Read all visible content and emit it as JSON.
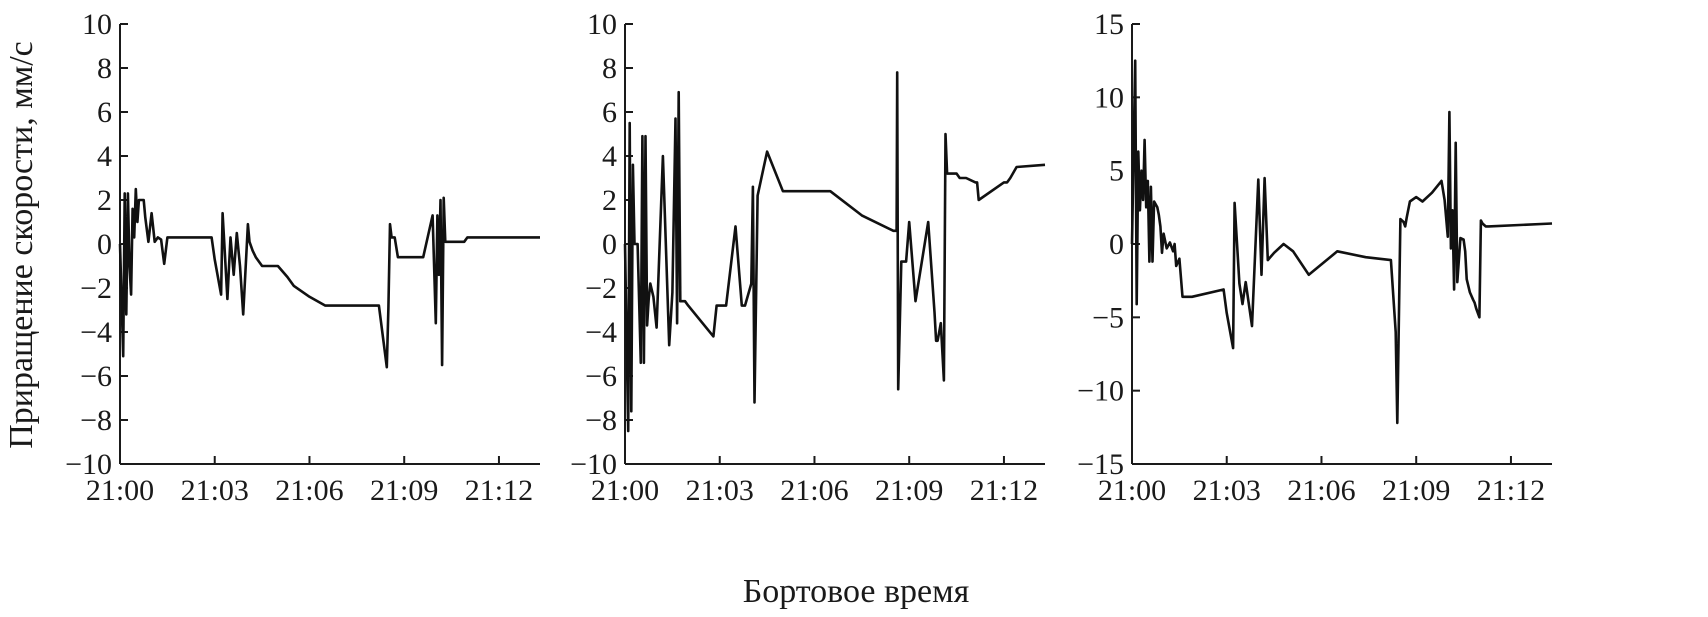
{
  "ylabel": "Приращение скорости, мм/с",
  "xlabel": "Бортовое время",
  "chart_data": [
    {
      "type": "line",
      "ylim": [
        -10,
        10
      ],
      "yticks": [
        -10,
        -8,
        -6,
        -4,
        -2,
        0,
        2,
        4,
        6,
        8,
        10
      ],
      "xlim": [
        0,
        13.3
      ],
      "xticks": [
        0,
        3,
        6,
        9,
        12
      ],
      "xtick_labels": [
        "21:00",
        "21:03",
        "21:06",
        "21:09",
        "21:12"
      ],
      "x": [
        0,
        0.1,
        0.15,
        0.2,
        0.25,
        0.3,
        0.35,
        0.4,
        0.45,
        0.5,
        0.55,
        0.6,
        0.65,
        0.7,
        0.75,
        0.8,
        0.9,
        1.0,
        1.1,
        1.2,
        1.3,
        1.4,
        1.5,
        1.55,
        1.6,
        1.65,
        1.7,
        1.75,
        1.8,
        1.9,
        2.0,
        2.9,
        3.0,
        3.2,
        3.25,
        3.4,
        3.5,
        3.6,
        3.7,
        3.8,
        3.9,
        4.05,
        4.1,
        4.2,
        4.3,
        4.5,
        4.8,
        5.0,
        5.3,
        5.5,
        6.0,
        6.5,
        7.0,
        7.5,
        8.2,
        8.45,
        8.5,
        8.55,
        8.6,
        8.7,
        8.8,
        8.9,
        9.2,
        9.6,
        9.9,
        10.0,
        10.05,
        10.1,
        10.15,
        10.2,
        10.25,
        10.3,
        10.4,
        10.5,
        10.9,
        11.0,
        11.1,
        12.0,
        13.3
      ],
      "y": [
        0,
        -5.1,
        2.3,
        -3.2,
        2.3,
        -1.0,
        -2.3,
        1.6,
        0.3,
        2.5,
        1.0,
        2.0,
        2.0,
        2.0,
        2.0,
        1.2,
        0.1,
        1.4,
        0.1,
        0.3,
        0.2,
        -0.9,
        0.3,
        0.3,
        0.3,
        0.3,
        0.3,
        0.3,
        0.3,
        0.3,
        0.3,
        0.3,
        -0.7,
        -2.3,
        1.4,
        -2.5,
        0.3,
        -1.4,
        0.5,
        -1.0,
        -3.2,
        0.9,
        0.1,
        -0.3,
        -0.6,
        -1.0,
        -1.0,
        -1.0,
        -1.5,
        -1.9,
        -2.4,
        -2.8,
        -2.8,
        -2.8,
        -2.8,
        -5.6,
        -2.9,
        0.9,
        0.3,
        0.3,
        -0.6,
        -0.6,
        -0.6,
        -0.6,
        1.3,
        -3.6,
        1.3,
        -1.4,
        2.0,
        -5.5,
        2.1,
        0.1,
        0.1,
        0.1,
        0.1,
        0.3,
        0.3,
        0.3,
        0.3
      ]
    },
    {
      "type": "line",
      "ylim": [
        -10,
        10
      ],
      "yticks": [
        -10,
        -8,
        -6,
        -4,
        -2,
        0,
        2,
        4,
        6,
        8,
        10
      ],
      "xlim": [
        0,
        13.3
      ],
      "xticks": [
        0,
        3,
        6,
        9,
        12
      ],
      "xtick_labels": [
        "21:00",
        "21:03",
        "21:06",
        "21:09",
        "21:12"
      ],
      "x": [
        0,
        0.1,
        0.15,
        0.2,
        0.25,
        0.3,
        0.35,
        0.4,
        0.5,
        0.55,
        0.6,
        0.65,
        0.7,
        0.75,
        0.8,
        0.9,
        1.0,
        1.2,
        1.4,
        1.5,
        1.6,
        1.65,
        1.7,
        1.75,
        1.8,
        1.85,
        1.9,
        2.0,
        2.8,
        2.9,
        3.0,
        3.2,
        3.5,
        3.7,
        3.8,
        4.0,
        4.05,
        4.1,
        4.2,
        4.5,
        5.0,
        5.5,
        6.5,
        7.5,
        8.5,
        8.6,
        8.62,
        8.65,
        8.75,
        8.9,
        9.0,
        9.2,
        9.6,
        9.8,
        9.85,
        9.9,
        10.0,
        10.1,
        10.15,
        10.2,
        10.3,
        10.5,
        10.6,
        10.8,
        11.1,
        11.15,
        11.2,
        12.0,
        12.1,
        12.2,
        12.4,
        13.3
      ],
      "y": [
        0,
        -8.5,
        5.5,
        -7.6,
        3.6,
        0,
        0,
        0,
        -5.4,
        4.9,
        -5.4,
        4.9,
        -3.7,
        -2.5,
        -1.8,
        -2.4,
        -3.8,
        4.0,
        -4.6,
        -2.2,
        5.7,
        -3.6,
        6.9,
        -2.6,
        -2.6,
        -2.6,
        -2.6,
        -2.8,
        -4.2,
        -2.8,
        -2.8,
        -2.8,
        0.8,
        -2.8,
        -2.8,
        -1.8,
        2.6,
        -7.2,
        2.2,
        4.2,
        2.4,
        2.4,
        2.4,
        1.3,
        0.6,
        0.6,
        7.8,
        -6.6,
        -0.8,
        -0.8,
        1.0,
        -2.6,
        1.0,
        -3.1,
        -4.4,
        -4.4,
        -3.6,
        -6.2,
        5.0,
        3.2,
        3.2,
        3.2,
        3.0,
        3.0,
        2.8,
        2.8,
        2.0,
        2.8,
        2.8,
        3.0,
        3.5,
        3.6
      ]
    },
    {
      "type": "line",
      "ylim": [
        -15,
        15
      ],
      "yticks": [
        -15,
        -10,
        -5,
        0,
        5,
        10,
        15
      ],
      "xlim": [
        0,
        13.3
      ],
      "xticks": [
        0,
        3,
        6,
        9,
        12
      ],
      "xtick_labels": [
        "21:00",
        "21:03",
        "21:06",
        "21:09",
        "21:12"
      ],
      "x": [
        0,
        0.1,
        0.15,
        0.2,
        0.25,
        0.3,
        0.35,
        0.4,
        0.45,
        0.5,
        0.55,
        0.6,
        0.65,
        0.7,
        0.75,
        0.8,
        0.85,
        0.9,
        0.95,
        1.0,
        1.1,
        1.2,
        1.3,
        1.35,
        1.4,
        1.5,
        1.6,
        1.7,
        1.75,
        1.8,
        1.85,
        1.9,
        2.9,
        3.0,
        3.2,
        3.25,
        3.4,
        3.5,
        3.6,
        3.8,
        4.0,
        4.1,
        4.2,
        4.3,
        4.5,
        4.8,
        5.1,
        5.6,
        6.5,
        7.4,
        8.2,
        8.35,
        8.4,
        8.5,
        8.6,
        8.65,
        8.7,
        8.8,
        9.0,
        9.2,
        9.5,
        9.8,
        9.9,
        10.0,
        10.05,
        10.1,
        10.15,
        10.2,
        10.25,
        10.3,
        10.4,
        10.5,
        10.55,
        10.6,
        10.7,
        10.8,
        10.85,
        10.9,
        11.0,
        11.05,
        11.1,
        11.2,
        11.25,
        11.3,
        13.3
      ],
      "y": [
        0,
        12.5,
        -4.1,
        6.3,
        2.3,
        5.0,
        3.0,
        7.1,
        2.5,
        4.3,
        -1.2,
        3.9,
        -1.2,
        2.9,
        2.7,
        2.5,
        2.0,
        1.2,
        -0.6,
        0.7,
        -0.3,
        0.1,
        -0.5,
        0.0,
        -1.5,
        -1.0,
        -3.6,
        -3.6,
        -3.6,
        -3.6,
        -3.6,
        -3.6,
        -3.1,
        -4.7,
        -7.1,
        2.8,
        -2.7,
        -4.1,
        -2.6,
        -5.6,
        4.4,
        -2.1,
        4.5,
        -1.1,
        -0.6,
        0.0,
        -0.5,
        -2.1,
        -0.5,
        -0.9,
        -1.1,
        -6.0,
        -12.2,
        1.7,
        1.5,
        1.2,
        1.8,
        2.9,
        3.2,
        2.9,
        3.5,
        4.3,
        3.0,
        0.5,
        9.0,
        -0.3,
        2.3,
        -3.1,
        6.9,
        -2.6,
        0.4,
        0.3,
        -0.5,
        -2.4,
        -3.3,
        -3.8,
        -4.0,
        -4.4,
        -5.0,
        1.6,
        1.4,
        1.2,
        1.2,
        1.2,
        1.4
      ]
    }
  ]
}
